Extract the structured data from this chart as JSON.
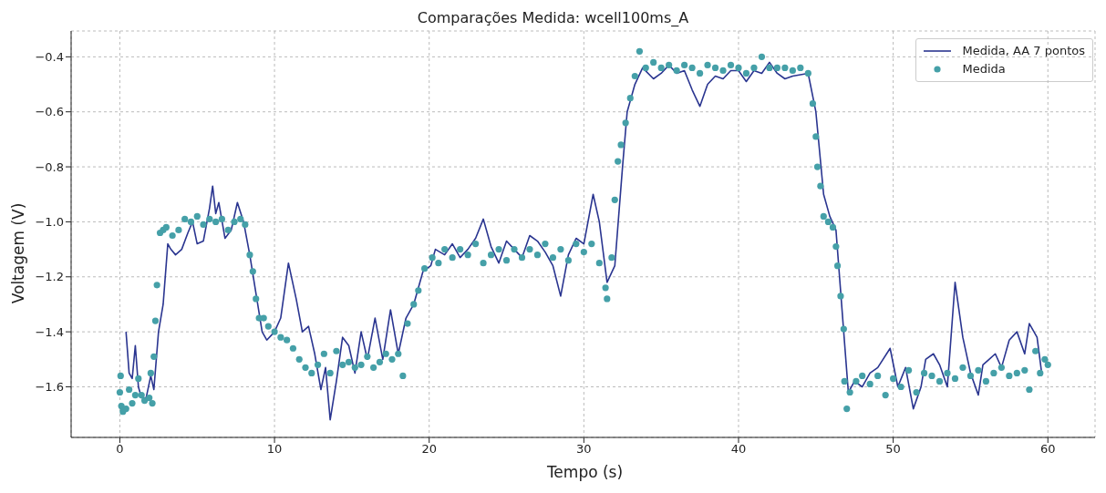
{
  "chart_data": {
    "type": "line",
    "title": "Comparações Medida: wcell100ms_A",
    "xlabel": "Tempo (s)",
    "ylabel": "Voltagem (V)",
    "xlim": [
      -3.15,
      63.05
    ],
    "ylim": [
      -1.784,
      -0.306
    ],
    "xticks": [
      0,
      10,
      20,
      30,
      40,
      50,
      60
    ],
    "yticks": [
      {
        "value": -1.6,
        "label": "−1.6"
      },
      {
        "value": -1.4,
        "label": "−1.4"
      },
      {
        "value": -1.2,
        "label": "−1.2"
      },
      {
        "value": -1.0,
        "label": "−1.0"
      },
      {
        "value": -0.8,
        "label": "−0.8"
      },
      {
        "value": -0.6,
        "label": "−0.6"
      },
      {
        "value": -0.4,
        "label": "−0.4"
      }
    ],
    "grid": true,
    "legend": "top right",
    "line_style": "solid",
    "series": [
      {
        "name": "Medida, AA 7 pontos",
        "marker": "none",
        "color": "#2a3590",
        "x": [
          0.4,
          0.6,
          0.8,
          1.0,
          1.2,
          1.4,
          1.7,
          2.0,
          2.2,
          2.5,
          2.8,
          3.1,
          3.3,
          3.6,
          4.0,
          4.4,
          4.7,
          5.0,
          5.4,
          5.8,
          6.0,
          6.2,
          6.4,
          6.8,
          7.2,
          7.6,
          8.0,
          8.4,
          8.8,
          9.2,
          9.5,
          10.0,
          10.4,
          10.9,
          11.4,
          11.8,
          12.2,
          12.6,
          13.0,
          13.3,
          13.6,
          14.0,
          14.4,
          14.8,
          15.2,
          15.6,
          16.0,
          16.5,
          17.0,
          17.5,
          18.0,
          18.5,
          19.0,
          19.6,
          20.1,
          20.4,
          21.0,
          21.5,
          22.0,
          22.5,
          23.0,
          23.5,
          24.0,
          24.5,
          25.0,
          25.5,
          26.0,
          26.5,
          27.0,
          27.5,
          28.0,
          28.5,
          29.0,
          29.5,
          30.0,
          30.6,
          31.0,
          31.5,
          32.0,
          32.5,
          32.8,
          33.3,
          33.8,
          34.5,
          35.0,
          35.5,
          36.0,
          36.5,
          37.0,
          37.5,
          38.0,
          38.5,
          39.0,
          39.5,
          40.0,
          40.5,
          41.0,
          41.5,
          42.0,
          42.5,
          43.0,
          43.5,
          44.5,
          45.0,
          45.5,
          45.9,
          46.3,
          46.8,
          47.1,
          47.5,
          48.0,
          48.5,
          49.0,
          49.8,
          50.3,
          50.8,
          51.3,
          51.8,
          52.1,
          52.6,
          53.0,
          53.5,
          54.0,
          54.5,
          55.0,
          55.5,
          55.8,
          56.2,
          56.6,
          57.0,
          57.5,
          58.0,
          58.5,
          58.8,
          59.3,
          59.6
        ],
        "values": [
          -1.4,
          -1.55,
          -1.57,
          -1.45,
          -1.6,
          -1.64,
          -1.64,
          -1.56,
          -1.61,
          -1.4,
          -1.3,
          -1.08,
          -1.1,
          -1.12,
          -1.1,
          -1.04,
          -1.0,
          -1.08,
          -1.07,
          -0.95,
          -0.87,
          -0.97,
          -0.93,
          -1.06,
          -1.03,
          -0.93,
          -1.0,
          -1.12,
          -1.26,
          -1.4,
          -1.43,
          -1.4,
          -1.35,
          -1.15,
          -1.28,
          -1.4,
          -1.38,
          -1.48,
          -1.61,
          -1.53,
          -1.72,
          -1.58,
          -1.42,
          -1.45,
          -1.55,
          -1.4,
          -1.5,
          -1.35,
          -1.5,
          -1.32,
          -1.48,
          -1.35,
          -1.3,
          -1.18,
          -1.16,
          -1.1,
          -1.12,
          -1.08,
          -1.13,
          -1.1,
          -1.06,
          -0.99,
          -1.09,
          -1.15,
          -1.07,
          -1.1,
          -1.13,
          -1.05,
          -1.07,
          -1.11,
          -1.16,
          -1.27,
          -1.12,
          -1.06,
          -1.08,
          -0.9,
          -1.0,
          -1.22,
          -1.16,
          -0.8,
          -0.6,
          -0.5,
          -0.44,
          -0.48,
          -0.46,
          -0.43,
          -0.46,
          -0.45,
          -0.52,
          -0.58,
          -0.5,
          -0.47,
          -0.48,
          -0.45,
          -0.45,
          -0.49,
          -0.45,
          -0.46,
          -0.42,
          -0.46,
          -0.48,
          -0.47,
          -0.46,
          -0.6,
          -0.9,
          -0.98,
          -1.03,
          -1.4,
          -1.62,
          -1.58,
          -1.6,
          -1.55,
          -1.53,
          -1.46,
          -1.6,
          -1.53,
          -1.68,
          -1.6,
          -1.5,
          -1.48,
          -1.52,
          -1.6,
          -1.22,
          -1.42,
          -1.55,
          -1.63,
          -1.52,
          -1.5,
          -1.48,
          -1.53,
          -1.43,
          -1.4,
          -1.48,
          -1.37,
          -1.42,
          -1.55
        ]
      },
      {
        "name": "Medida",
        "type": "scatter",
        "marker": "circle",
        "color": "#45a0a8",
        "x": [
          0.0,
          0.05,
          0.1,
          0.2,
          0.4,
          0.6,
          0.8,
          1.0,
          1.2,
          1.4,
          1.6,
          1.9,
          2.0,
          2.1,
          2.2,
          2.3,
          2.4,
          2.6,
          2.8,
          3.0,
          3.4,
          3.8,
          4.2,
          4.6,
          5.0,
          5.4,
          5.8,
          6.2,
          6.6,
          7.0,
          7.4,
          7.8,
          8.1,
          8.4,
          8.6,
          8.8,
          9.0,
          9.3,
          9.6,
          10.0,
          10.4,
          10.8,
          11.2,
          11.6,
          12.0,
          12.4,
          12.8,
          13.2,
          13.6,
          14.0,
          14.4,
          14.8,
          15.2,
          15.6,
          16.0,
          16.4,
          16.8,
          17.2,
          17.6,
          18.0,
          18.3,
          18.6,
          19.0,
          19.3,
          19.7,
          20.2,
          20.6,
          21.0,
          21.5,
          22.0,
          22.5,
          23.0,
          23.5,
          24.0,
          24.5,
          25.0,
          25.5,
          26.0,
          26.5,
          27.0,
          27.5,
          28.0,
          28.5,
          29.0,
          29.5,
          30.0,
          30.5,
          31.0,
          31.4,
          31.5,
          31.8,
          32.0,
          32.2,
          32.4,
          32.7,
          33.0,
          33.3,
          33.6,
          34.0,
          34.5,
          35.0,
          35.5,
          36.0,
          36.5,
          37.0,
          37.5,
          38.0,
          38.5,
          39.0,
          39.5,
          40.0,
          40.5,
          41.0,
          41.5,
          42.0,
          42.5,
          43.0,
          43.5,
          44.0,
          44.5,
          44.8,
          45.0,
          45.1,
          45.3,
          45.5,
          45.8,
          46.1,
          46.3,
          46.4,
          46.6,
          46.8,
          46.85,
          47.0,
          47.2,
          47.6,
          48.0,
          48.5,
          49.0,
          49.5,
          50.0,
          50.5,
          51.0,
          51.5,
          52.0,
          52.5,
          53.0,
          53.5,
          54.0,
          54.5,
          55.0,
          55.5,
          56.0,
          56.5,
          57.0,
          57.5,
          58.0,
          58.5,
          58.8,
          59.2,
          59.5,
          59.8,
          60.0
        ],
        "values": [
          -1.62,
          -1.56,
          -1.67,
          -1.69,
          -1.68,
          -1.61,
          -1.66,
          -1.63,
          -1.57,
          -1.63,
          -1.65,
          -1.64,
          -1.55,
          -1.66,
          -1.49,
          -1.36,
          -1.23,
          -1.04,
          -1.03,
          -1.02,
          -1.05,
          -1.03,
          -0.99,
          -1.0,
          -0.98,
          -1.01,
          -0.99,
          -1.0,
          -0.99,
          -1.03,
          -1.0,
          -0.99,
          -1.01,
          -1.12,
          -1.18,
          -1.28,
          -1.35,
          -1.35,
          -1.38,
          -1.4,
          -1.42,
          -1.43,
          -1.46,
          -1.5,
          -1.53,
          -1.55,
          -1.52,
          -1.48,
          -1.55,
          -1.47,
          -1.52,
          -1.51,
          -1.53,
          -1.52,
          -1.49,
          -1.53,
          -1.51,
          -1.48,
          -1.5,
          -1.48,
          -1.56,
          -1.37,
          -1.3,
          -1.25,
          -1.17,
          -1.13,
          -1.15,
          -1.1,
          -1.13,
          -1.1,
          -1.12,
          -1.08,
          -1.15,
          -1.12,
          -1.1,
          -1.14,
          -1.1,
          -1.13,
          -1.1,
          -1.12,
          -1.08,
          -1.13,
          -1.1,
          -1.14,
          -1.08,
          -1.11,
          -1.08,
          -1.15,
          -1.24,
          -1.28,
          -1.13,
          -0.92,
          -0.78,
          -0.72,
          -0.64,
          -0.55,
          -0.47,
          -0.38,
          -0.44,
          -0.42,
          -0.44,
          -0.43,
          -0.45,
          -0.43,
          -0.44,
          -0.46,
          -0.43,
          -0.44,
          -0.45,
          -0.43,
          -0.44,
          -0.46,
          -0.44,
          -0.4,
          -0.44,
          -0.44,
          -0.44,
          -0.45,
          -0.44,
          -0.46,
          -0.57,
          -0.69,
          -0.8,
          -0.87,
          -0.98,
          -1.0,
          -1.02,
          -1.09,
          -1.16,
          -1.27,
          -1.39,
          -1.58,
          -1.68,
          -1.62,
          -1.58,
          -1.56,
          -1.59,
          -1.56,
          -1.63,
          -1.57,
          -1.6,
          -1.54,
          -1.62,
          -1.55,
          -1.56,
          -1.58,
          -1.55,
          -1.57,
          -1.53,
          -1.56,
          -1.54,
          -1.58,
          -1.55,
          -1.53,
          -1.56,
          -1.55,
          -1.54,
          -1.61,
          -1.47,
          -1.55,
          -1.5,
          -1.52
        ]
      }
    ]
  }
}
